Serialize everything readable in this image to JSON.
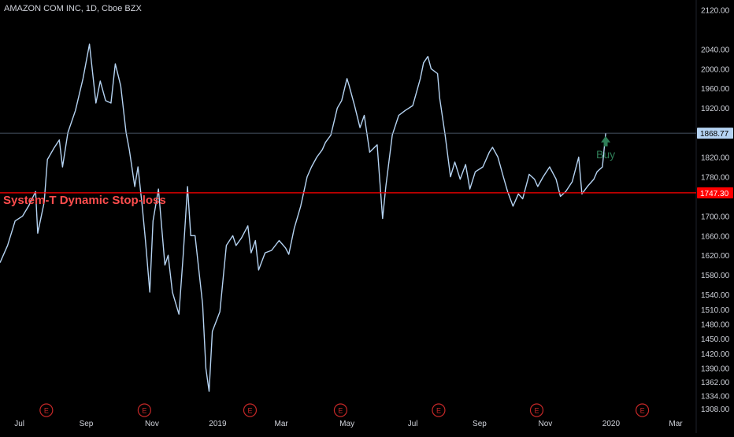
{
  "symbol_title": "AMAZON COM INC, 1D, Cboe BZX",
  "colors": {
    "background": "#000000",
    "price_line": "#b5d3f2",
    "stop_line": "#ff0000",
    "stop_label_text": "#ff4d4d",
    "buy": "#2e7d57",
    "axis_text": "#d1d4dc",
    "last_price_line": "#5b6b80",
    "earnings": "#c62828"
  },
  "chart_data": {
    "type": "line",
    "title": "AMAZON COM INC, 1D, Cboe BZX",
    "xlabel": "",
    "ylabel": "",
    "x_start": "2018-06-13",
    "x_end": "2020-03-20",
    "ylim": [
      1290,
      2140
    ],
    "y_ticks": [
      2120,
      2040,
      2000,
      1960,
      1920,
      1820,
      1780,
      1700,
      1660,
      1620,
      1580,
      1540,
      1510,
      1480,
      1450,
      1420,
      1390,
      1362,
      1334,
      1308
    ],
    "x_ticks": [
      {
        "label": "Jul",
        "date": "2018-07-01"
      },
      {
        "label": "Sep",
        "date": "2018-09-01"
      },
      {
        "label": "Nov",
        "date": "2018-11-01"
      },
      {
        "label": "2019",
        "date": "2019-01-01"
      },
      {
        "label": "Mar",
        "date": "2019-03-01"
      },
      {
        "label": "May",
        "date": "2019-05-01"
      },
      {
        "label": "Jul",
        "date": "2019-07-01"
      },
      {
        "label": "Sep",
        "date": "2019-09-01"
      },
      {
        "label": "Nov",
        "date": "2019-11-01"
      },
      {
        "label": "2020",
        "date": "2020-01-01"
      },
      {
        "label": "Mar",
        "date": "2020-03-01"
      }
    ],
    "series": [
      {
        "points": [
          [
            "2018-06-13",
            1605
          ],
          [
            "2018-06-20",
            1640
          ],
          [
            "2018-06-27",
            1690
          ],
          [
            "2018-07-04",
            1700
          ],
          [
            "2018-07-10",
            1722
          ],
          [
            "2018-07-16",
            1750
          ],
          [
            "2018-07-18",
            1665
          ],
          [
            "2018-07-24",
            1728
          ],
          [
            "2018-07-27",
            1815
          ],
          [
            "2018-08-02",
            1838
          ],
          [
            "2018-08-07",
            1855
          ],
          [
            "2018-08-10",
            1800
          ],
          [
            "2018-08-15",
            1870
          ],
          [
            "2018-08-22",
            1915
          ],
          [
            "2018-08-29",
            1980
          ],
          [
            "2018-09-04",
            2050
          ],
          [
            "2018-09-10",
            1930
          ],
          [
            "2018-09-14",
            1975
          ],
          [
            "2018-09-19",
            1935
          ],
          [
            "2018-09-24",
            1930
          ],
          [
            "2018-09-28",
            2010
          ],
          [
            "2018-10-03",
            1965
          ],
          [
            "2018-10-08",
            1870
          ],
          [
            "2018-10-11",
            1835
          ],
          [
            "2018-10-16",
            1760
          ],
          [
            "2018-10-19",
            1800
          ],
          [
            "2018-10-23",
            1720
          ],
          [
            "2018-10-26",
            1650
          ],
          [
            "2018-10-30",
            1545
          ],
          [
            "2018-11-02",
            1690
          ],
          [
            "2018-11-07",
            1755
          ],
          [
            "2018-11-13",
            1600
          ],
          [
            "2018-11-16",
            1620
          ],
          [
            "2018-11-20",
            1545
          ],
          [
            "2018-11-26",
            1500
          ],
          [
            "2018-11-30",
            1620
          ],
          [
            "2018-12-04",
            1760
          ],
          [
            "2018-12-07",
            1660
          ],
          [
            "2018-12-11",
            1660
          ],
          [
            "2018-12-14",
            1600
          ],
          [
            "2018-12-18",
            1520
          ],
          [
            "2018-12-21",
            1390
          ],
          [
            "2018-12-24",
            1343
          ],
          [
            "2018-12-27",
            1465
          ],
          [
            "2019-01-03",
            1505
          ],
          [
            "2019-01-09",
            1640
          ],
          [
            "2019-01-15",
            1660
          ],
          [
            "2019-01-18",
            1640
          ],
          [
            "2019-01-23",
            1655
          ],
          [
            "2019-01-29",
            1680
          ],
          [
            "2019-02-01",
            1625
          ],
          [
            "2019-02-05",
            1650
          ],
          [
            "2019-02-08",
            1590
          ],
          [
            "2019-02-14",
            1625
          ],
          [
            "2019-02-20",
            1630
          ],
          [
            "2019-02-27",
            1650
          ],
          [
            "2019-03-05",
            1635
          ],
          [
            "2019-03-08",
            1622
          ],
          [
            "2019-03-13",
            1675
          ],
          [
            "2019-03-19",
            1720
          ],
          [
            "2019-03-25",
            1780
          ],
          [
            "2019-03-29",
            1800
          ],
          [
            "2019-04-03",
            1820
          ],
          [
            "2019-04-08",
            1835
          ],
          [
            "2019-04-11",
            1850
          ],
          [
            "2019-04-16",
            1865
          ],
          [
            "2019-04-22",
            1920
          ],
          [
            "2019-04-26",
            1935
          ],
          [
            "2019-05-01",
            1980
          ],
          [
            "2019-05-03",
            1965
          ],
          [
            "2019-05-08",
            1925
          ],
          [
            "2019-05-13",
            1880
          ],
          [
            "2019-05-17",
            1905
          ],
          [
            "2019-05-22",
            1830
          ],
          [
            "2019-05-29",
            1845
          ],
          [
            "2019-06-03",
            1695
          ],
          [
            "2019-06-06",
            1760
          ],
          [
            "2019-06-12",
            1865
          ],
          [
            "2019-06-18",
            1905
          ],
          [
            "2019-06-24",
            1915
          ],
          [
            "2019-07-01",
            1925
          ],
          [
            "2019-07-08",
            1980
          ],
          [
            "2019-07-11",
            2012
          ],
          [
            "2019-07-15",
            2025
          ],
          [
            "2019-07-18",
            2000
          ],
          [
            "2019-07-24",
            1990
          ],
          [
            "2019-07-26",
            1940
          ],
          [
            "2019-07-31",
            1865
          ],
          [
            "2019-08-05",
            1780
          ],
          [
            "2019-08-09",
            1810
          ],
          [
            "2019-08-14",
            1775
          ],
          [
            "2019-08-19",
            1805
          ],
          [
            "2019-08-23",
            1755
          ],
          [
            "2019-08-28",
            1790
          ],
          [
            "2019-09-04",
            1800
          ],
          [
            "2019-09-10",
            1830
          ],
          [
            "2019-09-13",
            1840
          ],
          [
            "2019-09-18",
            1820
          ],
          [
            "2019-09-23",
            1780
          ],
          [
            "2019-09-27",
            1750
          ],
          [
            "2019-10-02",
            1720
          ],
          [
            "2019-10-07",
            1745
          ],
          [
            "2019-10-11",
            1735
          ],
          [
            "2019-10-17",
            1785
          ],
          [
            "2019-10-22",
            1775
          ],
          [
            "2019-10-25",
            1760
          ],
          [
            "2019-10-30",
            1780
          ],
          [
            "2019-11-05",
            1800
          ],
          [
            "2019-11-11",
            1775
          ],
          [
            "2019-11-15",
            1740
          ],
          [
            "2019-11-20",
            1750
          ],
          [
            "2019-11-26",
            1770
          ],
          [
            "2019-12-02",
            1820
          ],
          [
            "2019-12-05",
            1745
          ],
          [
            "2019-12-10",
            1760
          ],
          [
            "2019-12-16",
            1775
          ],
          [
            "2019-12-19",
            1790
          ],
          [
            "2019-12-24",
            1800
          ],
          [
            "2019-12-27",
            1868.77
          ]
        ]
      }
    ],
    "stop_level": {
      "value": 1747.3,
      "label": "1747.30",
      "text": "System-T Dynamic Stop-loss"
    },
    "last_price": {
      "value": 1868.77,
      "label": "1868.77"
    },
    "buy_signal": {
      "date": "2019-12-27",
      "value": 1850,
      "label": "Buy"
    },
    "earnings_markers": [
      {
        "date": "2018-07-26",
        "label": "E"
      },
      {
        "date": "2018-10-25",
        "label": "E"
      },
      {
        "date": "2019-01-31",
        "label": "E"
      },
      {
        "date": "2019-04-25",
        "label": "E"
      },
      {
        "date": "2019-07-25",
        "label": "E"
      },
      {
        "date": "2019-10-24",
        "label": "E"
      },
      {
        "date": "2020-01-30",
        "label": "E"
      }
    ],
    "grid": false
  }
}
